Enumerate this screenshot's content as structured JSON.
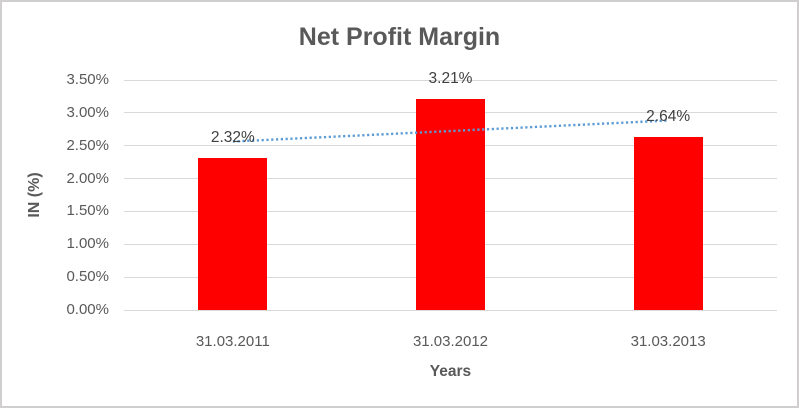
{
  "chart_data": {
    "type": "bar",
    "title": "Net Profit Margin",
    "categories": [
      "31.03.2011",
      "31.03.2012",
      "31.03.2013"
    ],
    "values": [
      2.32,
      3.21,
      2.64
    ],
    "data_labels": [
      "2.32%",
      "3.21%",
      "2.64%"
    ],
    "xlabel": "Years",
    "ylabel": "IN (%)",
    "ylim": [
      0,
      3.5
    ],
    "ytick_step": 0.5,
    "ytick_labels": [
      "0.00%",
      "0.50%",
      "1.00%",
      "1.50%",
      "2.00%",
      "2.50%",
      "3.00%",
      "3.50%"
    ],
    "bar_color": "#ff0000",
    "gridline_color": "#d9d9d9",
    "grid": "on",
    "legend": "none",
    "trendline": {
      "kind": "linear",
      "style": "dotted",
      "color": "#5b9bd5"
    }
  }
}
